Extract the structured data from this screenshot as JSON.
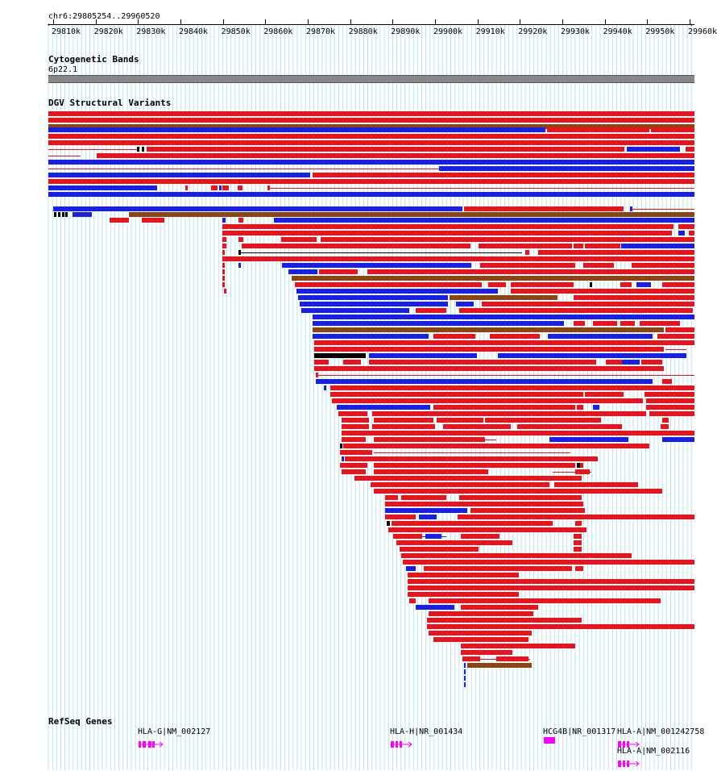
{
  "colors": {
    "gain": "#e8141d",
    "loss": "#1a1fe6",
    "both": "#8b4513",
    "gene": "#ff00ff",
    "band": "#888888",
    "gridline": "#b8e4ee"
  },
  "ruler": {
    "position": "chr6:29805254..29960520",
    "ticks": [
      "29810k",
      "29820k",
      "29830k",
      "29840k",
      "29850k",
      "29860k",
      "29870k",
      "29880k",
      "29890k",
      "29900k",
      "29910k",
      "29920k",
      "29930k",
      "29940k",
      "29950k",
      "29960k"
    ]
  },
  "cytoband": {
    "title": "Cytogenetic Bands",
    "band": "6p22.1"
  },
  "dgv": {
    "title": "DGV Structural Variants"
  },
  "refseq": {
    "title": "RefSeq Genes",
    "genes": [
      {
        "label": "HLA-G|NM_002127",
        "icon": "gene-exon-arrow-icon"
      },
      {
        "label": "HLA-H|NR_001434",
        "icon": "gene-exon-arrow-icon"
      },
      {
        "label": "HCG4B|NR_001317",
        "icon": "gene-exon-block-icon"
      },
      {
        "label": "HLA-A|NM_001242758",
        "icon": "gene-exon-arrow-icon"
      },
      {
        "label": "HLA-A|NM_002116",
        "icon": "gene-exon-arrow-icon"
      }
    ]
  }
}
